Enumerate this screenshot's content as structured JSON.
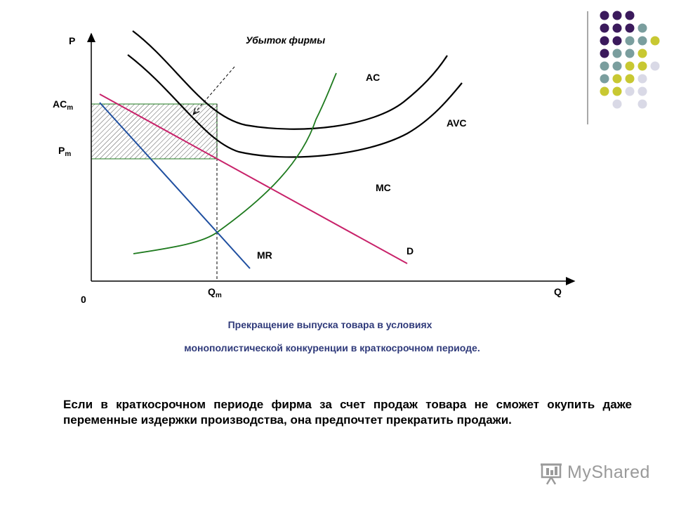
{
  "diagram": {
    "axis_y_label": "P",
    "axis_x_label": "Q",
    "origin_label": "0",
    "loss_label": "Убыток фирмы",
    "acm_label_main": "AC",
    "acm_label_sub": "m",
    "pm_label_main": "P",
    "pm_label_sub": "m",
    "qm_label_main": "Q",
    "qm_label_sub": "m",
    "curves": {
      "ac": "AC",
      "avc": "AVC",
      "mc": "MC",
      "mr": "MR",
      "d": "D"
    },
    "colors": {
      "cost_curves": "#000000",
      "mc": "#1e7a1e",
      "demand": "#c8226a",
      "mr": "#1f4fa0",
      "loss_rect": "#1e7a1e"
    }
  },
  "caption_line1": "Прекращение выпуска товара в условиях",
  "caption_line2": "монополистической конкуренции в краткосрочном периоде.",
  "body_text": "Если в краткосрочном периоде фирма за счет продаж товара не сможет окупить даже переменные издержки производства, она предпочтет прекратить продажи.",
  "watermark": "MyShared",
  "decor_dot_colors": [
    "#3b1a5c",
    "#7a9e9e",
    "#c8c832",
    "#d9d9e6"
  ]
}
